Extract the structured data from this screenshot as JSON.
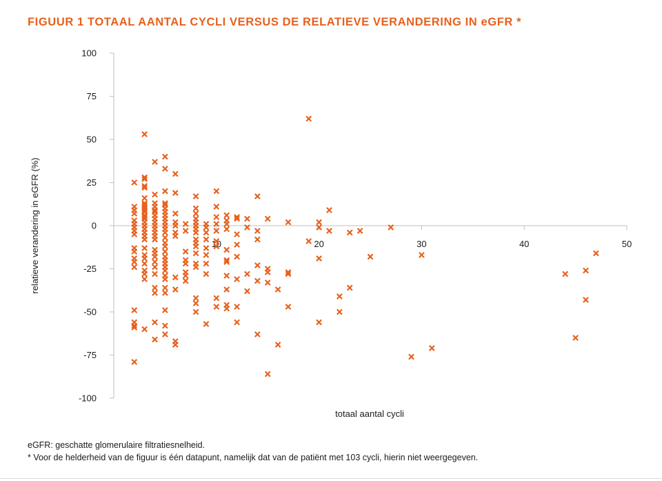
{
  "figure": {
    "title": "FIGUUR 1  TOTAAL AANTAL CYCLI VERSUS DE RELATIEVE VERANDERING IN eGFR *",
    "accent_color": "#e8601c"
  },
  "notes": {
    "line1": "eGFR: geschatte glomerulaire filtratiesnelheid.",
    "line2": "* Voor de helderheid van de figuur is één datapunt, namelijk dat van de patiënt met 103 cycli, hierin niet weergegeven."
  },
  "chart_data": {
    "type": "scatter",
    "title": "TOTAAL AANTAL CYCLI VERSUS DE RELATIEVE VERANDERING IN eGFR",
    "xlabel": "totaal aantal cycli",
    "ylabel": "relatieve verandering in eGFR (%)",
    "xlim": [
      0,
      50
    ],
    "ylim": [
      -100,
      100
    ],
    "xticks": [
      10,
      20,
      30,
      40,
      50
    ],
    "yticks": [
      100,
      75,
      50,
      25,
      0,
      -25,
      -50,
      -75,
      -100
    ],
    "marker": "x",
    "marker_color": "#e8601c",
    "grid": false,
    "points": [
      [
        2,
        25
      ],
      [
        2,
        11
      ],
      [
        2,
        9
      ],
      [
        2,
        7
      ],
      [
        2,
        3
      ],
      [
        2,
        1
      ],
      [
        2,
        -1
      ],
      [
        2,
        -3
      ],
      [
        2,
        -5
      ],
      [
        2,
        -13
      ],
      [
        2,
        -15
      ],
      [
        2,
        -19
      ],
      [
        2,
        -21
      ],
      [
        2,
        -24
      ],
      [
        2,
        -49
      ],
      [
        2,
        -56
      ],
      [
        2,
        -58
      ],
      [
        2,
        -59
      ],
      [
        2,
        -79
      ],
      [
        3,
        53
      ],
      [
        3,
        28
      ],
      [
        3,
        27
      ],
      [
        3,
        23
      ],
      [
        3,
        22
      ],
      [
        3,
        16
      ],
      [
        3,
        13
      ],
      [
        3,
        12
      ],
      [
        3,
        11
      ],
      [
        3,
        10
      ],
      [
        3,
        9
      ],
      [
        3,
        8
      ],
      [
        3,
        6
      ],
      [
        3,
        5
      ],
      [
        3,
        4
      ],
      [
        3,
        2
      ],
      [
        3,
        0
      ],
      [
        3,
        -2
      ],
      [
        3,
        -4
      ],
      [
        3,
        -6
      ],
      [
        3,
        -8
      ],
      [
        3,
        -13
      ],
      [
        3,
        -17
      ],
      [
        3,
        -19
      ],
      [
        3,
        -22
      ],
      [
        3,
        -26
      ],
      [
        3,
        -28
      ],
      [
        3,
        -31
      ],
      [
        3,
        -60
      ],
      [
        4,
        37
      ],
      [
        4,
        18
      ],
      [
        4,
        13
      ],
      [
        4,
        11
      ],
      [
        4,
        9
      ],
      [
        4,
        8
      ],
      [
        4,
        6
      ],
      [
        4,
        4
      ],
      [
        4,
        2
      ],
      [
        4,
        0
      ],
      [
        4,
        -2
      ],
      [
        4,
        -4
      ],
      [
        4,
        -6
      ],
      [
        4,
        -8
      ],
      [
        4,
        -14
      ],
      [
        4,
        -16
      ],
      [
        4,
        -18
      ],
      [
        4,
        -21
      ],
      [
        4,
        -24
      ],
      [
        4,
        -28
      ],
      [
        4,
        -36
      ],
      [
        4,
        -39
      ],
      [
        4,
        -56
      ],
      [
        4,
        -66
      ],
      [
        5,
        40
      ],
      [
        5,
        33
      ],
      [
        5,
        20
      ],
      [
        5,
        13
      ],
      [
        5,
        12
      ],
      [
        5,
        10
      ],
      [
        5,
        8
      ],
      [
        5,
        6
      ],
      [
        5,
        4
      ],
      [
        5,
        2
      ],
      [
        5,
        0
      ],
      [
        5,
        -2
      ],
      [
        5,
        -4
      ],
      [
        5,
        -7
      ],
      [
        5,
        -10
      ],
      [
        5,
        -12
      ],
      [
        5,
        -15
      ],
      [
        5,
        -18
      ],
      [
        5,
        -20
      ],
      [
        5,
        -22
      ],
      [
        5,
        -24
      ],
      [
        5,
        -26
      ],
      [
        5,
        -29
      ],
      [
        5,
        -31
      ],
      [
        5,
        -36
      ],
      [
        5,
        -39
      ],
      [
        5,
        -49
      ],
      [
        5,
        -58
      ],
      [
        5,
        -63
      ],
      [
        6,
        30
      ],
      [
        6,
        19
      ],
      [
        6,
        7
      ],
      [
        6,
        2
      ],
      [
        6,
        0
      ],
      [
        6,
        -4
      ],
      [
        6,
        -6
      ],
      [
        6,
        -30
      ],
      [
        6,
        -37
      ],
      [
        6,
        -67
      ],
      [
        6,
        -69
      ],
      [
        7,
        1
      ],
      [
        7,
        -3
      ],
      [
        7,
        -15
      ],
      [
        7,
        -20
      ],
      [
        7,
        -22
      ],
      [
        7,
        -27
      ],
      [
        7,
        -29
      ],
      [
        7,
        -32
      ],
      [
        8,
        17
      ],
      [
        8,
        10
      ],
      [
        8,
        7
      ],
      [
        8,
        4
      ],
      [
        8,
        2
      ],
      [
        8,
        0
      ],
      [
        8,
        -2
      ],
      [
        8,
        -4
      ],
      [
        8,
        -8
      ],
      [
        8,
        -10
      ],
      [
        8,
        -12
      ],
      [
        8,
        -16
      ],
      [
        8,
        -22
      ],
      [
        8,
        -24
      ],
      [
        8,
        -42
      ],
      [
        8,
        -45
      ],
      [
        8,
        -50
      ],
      [
        9,
        1
      ],
      [
        9,
        -1
      ],
      [
        9,
        -4
      ],
      [
        9,
        -8
      ],
      [
        9,
        -13
      ],
      [
        9,
        -17
      ],
      [
        9,
        -22
      ],
      [
        9,
        -28
      ],
      [
        9,
        -57
      ],
      [
        10,
        20
      ],
      [
        10,
        11
      ],
      [
        10,
        5
      ],
      [
        10,
        1
      ],
      [
        10,
        -3
      ],
      [
        10,
        -9
      ],
      [
        10,
        -12
      ],
      [
        10,
        -42
      ],
      [
        10,
        -47
      ],
      [
        11,
        6
      ],
      [
        11,
        3
      ],
      [
        11,
        1
      ],
      [
        11,
        -2
      ],
      [
        11,
        -14
      ],
      [
        11,
        -20
      ],
      [
        11,
        -21
      ],
      [
        11,
        -29
      ],
      [
        11,
        -37
      ],
      [
        11,
        -46
      ],
      [
        11,
        -48
      ],
      [
        12,
        5
      ],
      [
        12,
        4
      ],
      [
        12,
        -5
      ],
      [
        12,
        -11
      ],
      [
        12,
        -18
      ],
      [
        12,
        -31
      ],
      [
        12,
        -47
      ],
      [
        12,
        -56
      ],
      [
        13,
        4
      ],
      [
        13,
        -1
      ],
      [
        13,
        -28
      ],
      [
        13,
        -38
      ],
      [
        14,
        17
      ],
      [
        14,
        -3
      ],
      [
        14,
        -8
      ],
      [
        14,
        -23
      ],
      [
        14,
        -32
      ],
      [
        14,
        -63
      ],
      [
        15,
        4
      ],
      [
        15,
        -25
      ],
      [
        15,
        -27
      ],
      [
        15,
        -33
      ],
      [
        15,
        -86
      ],
      [
        16,
        -37
      ],
      [
        16,
        -69
      ],
      [
        17,
        2
      ],
      [
        17,
        -27
      ],
      [
        17,
        -28
      ],
      [
        17,
        -47
      ],
      [
        19,
        62
      ],
      [
        19,
        -9
      ],
      [
        20,
        2
      ],
      [
        20,
        -1
      ],
      [
        20,
        -19
      ],
      [
        20,
        -56
      ],
      [
        21,
        9
      ],
      [
        21,
        -3
      ],
      [
        22,
        -41
      ],
      [
        22,
        -50
      ],
      [
        23,
        -4
      ],
      [
        23,
        -36
      ],
      [
        24,
        -3
      ],
      [
        25,
        -18
      ],
      [
        27,
        -1
      ],
      [
        29,
        -76
      ],
      [
        30,
        -17
      ],
      [
        31,
        -71
      ],
      [
        44,
        -28
      ],
      [
        45,
        -65
      ],
      [
        46,
        -26
      ],
      [
        46,
        -43
      ],
      [
        47,
        -16
      ]
    ]
  }
}
